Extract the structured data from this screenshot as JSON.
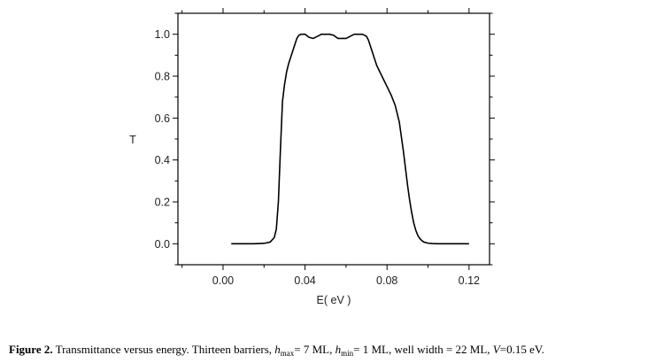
{
  "chart_data": {
    "type": "line",
    "xlabel": "E( eV )",
    "ylabel": "T",
    "xlim": [
      -0.022,
      0.13
    ],
    "ylim": [
      -0.1,
      1.1
    ],
    "x_ticks": [
      "0.00",
      "0.04",
      "0.08",
      "0.12"
    ],
    "x_tick_values": [
      0.0,
      0.04,
      0.08,
      0.12
    ],
    "y_ticks": [
      "0.0",
      "0.2",
      "0.4",
      "0.6",
      "0.8",
      "1.0"
    ],
    "y_tick_values": [
      0.0,
      0.2,
      0.4,
      0.6,
      0.8,
      1.0
    ],
    "grid": false,
    "series": [
      {
        "x": [
          0.004,
          0.01,
          0.015,
          0.02,
          0.023,
          0.025,
          0.026,
          0.027,
          0.028,
          0.029,
          0.03,
          0.031,
          0.032,
          0.033,
          0.034,
          0.035,
          0.036,
          0.037,
          0.038,
          0.04,
          0.042,
          0.044,
          0.046,
          0.048,
          0.05,
          0.052,
          0.054,
          0.056,
          0.058,
          0.06,
          0.062,
          0.064,
          0.066,
          0.068,
          0.07,
          0.071,
          0.072,
          0.073,
          0.074,
          0.075,
          0.076,
          0.078,
          0.08,
          0.082,
          0.084,
          0.086,
          0.087,
          0.088,
          0.089,
          0.09,
          0.091,
          0.092,
          0.093,
          0.094,
          0.095,
          0.096,
          0.097,
          0.098,
          0.1,
          0.102,
          0.105,
          0.11,
          0.115,
          0.12
        ],
        "y": [
          0.0,
          0.0,
          0.0,
          0.002,
          0.008,
          0.03,
          0.07,
          0.2,
          0.45,
          0.68,
          0.76,
          0.82,
          0.86,
          0.89,
          0.92,
          0.95,
          0.98,
          0.995,
          1.0,
          1.0,
          0.985,
          0.98,
          0.99,
          1.0,
          1.0,
          1.0,
          0.995,
          0.98,
          0.98,
          0.98,
          0.99,
          1.0,
          1.0,
          1.0,
          0.99,
          0.97,
          0.94,
          0.91,
          0.88,
          0.85,
          0.83,
          0.79,
          0.75,
          0.71,
          0.66,
          0.58,
          0.51,
          0.44,
          0.36,
          0.28,
          0.21,
          0.15,
          0.1,
          0.065,
          0.04,
          0.025,
          0.015,
          0.008,
          0.003,
          0.001,
          0.0,
          0.0,
          0.0,
          0.0
        ]
      }
    ]
  },
  "caption": {
    "label": "Figure 2.",
    "text1": " Transmittance versus energy. Thirteen barriers, ",
    "h_symbol": "h",
    "sub_max": "max",
    "text2": "= 7 ML, ",
    "sub_min": "min",
    "text3": "= 1 ML, well width = 22 ML, ",
    "v_symbol": "V",
    "text4": "=0.15 eV."
  }
}
